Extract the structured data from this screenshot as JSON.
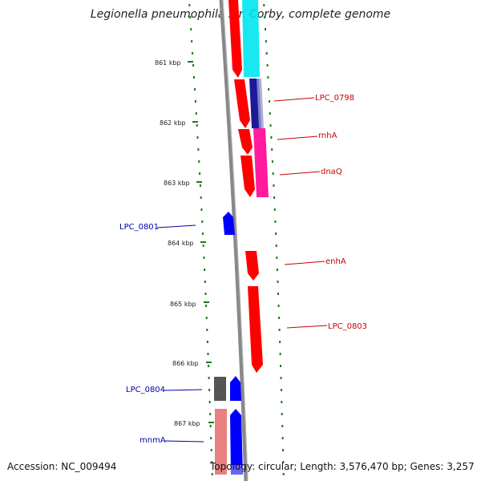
{
  "title": "Legionella pneumophila str. Corby, complete genome",
  "footer": {
    "accession": "Accession: NC_009494",
    "topology": "Topology: circular; Length: 3,576,470 bp; Genes: 3,257"
  },
  "colors": {
    "backbone": "#888888",
    "tick_marks": "#1a7a1a",
    "forward_gene": "#ff0000",
    "reverse_gene": "#0000ff",
    "label_forward": "#cc0000",
    "label_reverse": "#0000aa",
    "cyan_track": "#00e5f0",
    "magenta_track": "#ff1aa0",
    "navy_track": "#000080",
    "gray_track": "#555555",
    "pink_track": "#e88080"
  },
  "ticks": [
    "861 kbp",
    "862 kbp",
    "863 kbp",
    "864 kbp",
    "865 kbp",
    "866 kbp",
    "867 kbp"
  ],
  "gene_labels": {
    "LPC_0798": "LPC_0798",
    "rnhA": "rnhA",
    "dnaQ": "dnaQ",
    "LPC_0801": "LPC_0801",
    "enhA": "enhA",
    "LPC_0803": "LPC_0803",
    "LPC_0804": "LPC_0804",
    "mnmA": "mnmA"
  }
}
